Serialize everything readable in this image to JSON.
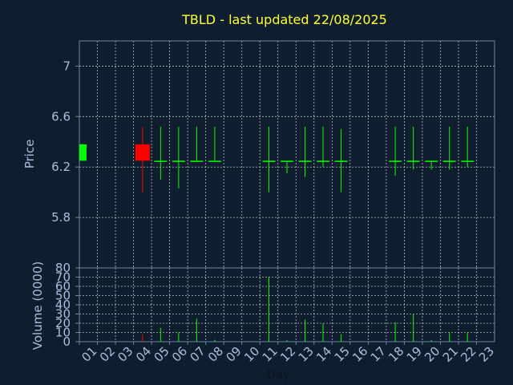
{
  "chart_data": {
    "type": "candlestick",
    "title": "TBLD - last updated 22/08/2025",
    "xlabel": "Day",
    "price_ylabel": "Price",
    "volume_ylabel": "Volume (0000)",
    "x_ticks": [
      "01",
      "02",
      "03",
      "04",
      "05",
      "06",
      "07",
      "08",
      "09",
      "10",
      "11",
      "12",
      "13",
      "14",
      "15",
      "16",
      "17",
      "18",
      "19",
      "20",
      "21",
      "22",
      "23"
    ],
    "price_ticks": [
      "7",
      "6.6",
      "6.2",
      "5.8"
    ],
    "price_tick_values": [
      7.0,
      6.6,
      6.2,
      5.8
    ],
    "volume_ticks": [
      "80",
      "70",
      "60",
      "50",
      "40",
      "30",
      "20",
      "10",
      "0"
    ],
    "volume_tick_values": [
      80,
      70,
      60,
      50,
      40,
      30,
      20,
      10,
      0
    ],
    "price_ylim": [
      5.4,
      7.2
    ],
    "volume_ylim": [
      0,
      80
    ],
    "grid": true,
    "colors": {
      "up": "#00ff00",
      "down": "#ff0000",
      "background": "#0f1e2e",
      "grid": "#ffffff",
      "text": "#a9bfe0",
      "title": "#ffff33"
    },
    "candles": [
      {
        "day": 1,
        "open": 6.25,
        "close": 6.38,
        "high": 6.38,
        "low": 6.25,
        "volume": 0
      },
      {
        "day": 4,
        "open": 6.38,
        "close": 6.25,
        "high": 6.52,
        "low": 6.0,
        "volume": 8
      },
      {
        "day": 5,
        "open": 6.25,
        "close": 6.25,
        "high": 6.52,
        "low": 6.1,
        "volume": 15
      },
      {
        "day": 6,
        "open": 6.25,
        "close": 6.25,
        "high": 6.52,
        "low": 6.03,
        "volume": 10
      },
      {
        "day": 7,
        "open": 6.25,
        "close": 6.25,
        "high": 6.52,
        "low": 6.25,
        "volume": 25
      },
      {
        "day": 8,
        "open": 6.25,
        "close": 6.25,
        "high": 6.52,
        "low": 6.25,
        "volume": 2
      },
      {
        "day": 11,
        "open": 6.25,
        "close": 6.25,
        "high": 6.52,
        "low": 6.0,
        "volume": 70
      },
      {
        "day": 12,
        "open": 6.25,
        "close": 6.25,
        "high": 6.25,
        "low": 6.15,
        "volume": 2
      },
      {
        "day": 13,
        "open": 6.25,
        "close": 6.25,
        "high": 6.52,
        "low": 6.12,
        "volume": 24
      },
      {
        "day": 14,
        "open": 6.25,
        "close": 6.25,
        "high": 6.52,
        "low": 6.2,
        "volume": 20
      },
      {
        "day": 15,
        "open": 6.25,
        "close": 6.25,
        "high": 6.5,
        "low": 6.0,
        "volume": 8
      },
      {
        "day": 18,
        "open": 6.25,
        "close": 6.25,
        "high": 6.52,
        "low": 6.13,
        "volume": 21
      },
      {
        "day": 19,
        "open": 6.25,
        "close": 6.25,
        "high": 6.52,
        "low": 6.18,
        "volume": 30
      },
      {
        "day": 20,
        "open": 6.25,
        "close": 6.25,
        "high": 6.25,
        "low": 6.18,
        "volume": 2
      },
      {
        "day": 21,
        "open": 6.25,
        "close": 6.25,
        "high": 6.52,
        "low": 6.18,
        "volume": 10
      },
      {
        "day": 22,
        "open": 6.25,
        "close": 6.25,
        "high": 6.52,
        "low": 6.2,
        "volume": 10
      }
    ]
  }
}
